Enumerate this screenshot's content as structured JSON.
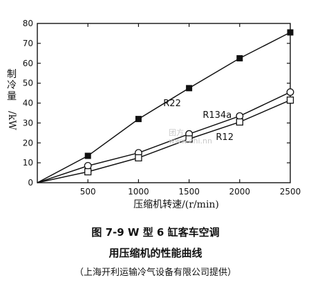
{
  "chart_data": {
    "type": "line",
    "title": "",
    "xlabel": "压缩机转速/(r/min)",
    "ylabel": "制冷量/kW",
    "x": [
      500,
      1000,
      1500,
      2000,
      2500
    ],
    "xlim": [
      0,
      2500
    ],
    "ylim": [
      0,
      80
    ],
    "xticks": [
      "500",
      "1000",
      "1500",
      "2000",
      "2500"
    ],
    "yticks": [
      "0",
      "10",
      "20",
      "30",
      "40",
      "50",
      "60",
      "70",
      "80"
    ],
    "grid": false,
    "series": [
      {
        "name": "R22",
        "marker": "filled-square",
        "values": [
          13.5,
          32,
          47.5,
          62.5,
          75.5
        ]
      },
      {
        "name": "R134a",
        "marker": "open-circle",
        "values": [
          8.5,
          15,
          24.5,
          33.5,
          45.5
        ]
      },
      {
        "name": "R12",
        "marker": "open-square",
        "values": [
          5.5,
          12.5,
          22,
          30.5,
          41.5
        ]
      }
    ]
  },
  "caption": {
    "line1": "图 7-9   W 型 6 缸客车空调",
    "line2": "用压缩机的性能曲线",
    "line3": "（上海开利运输冷气设备有限公司提供）"
  },
  "ylabel_parts": {
    "chars": "制冷量",
    "unit": "/kW"
  },
  "watermark": {
    "line1": "团方",
    "line2": "www.chi.nn"
  }
}
